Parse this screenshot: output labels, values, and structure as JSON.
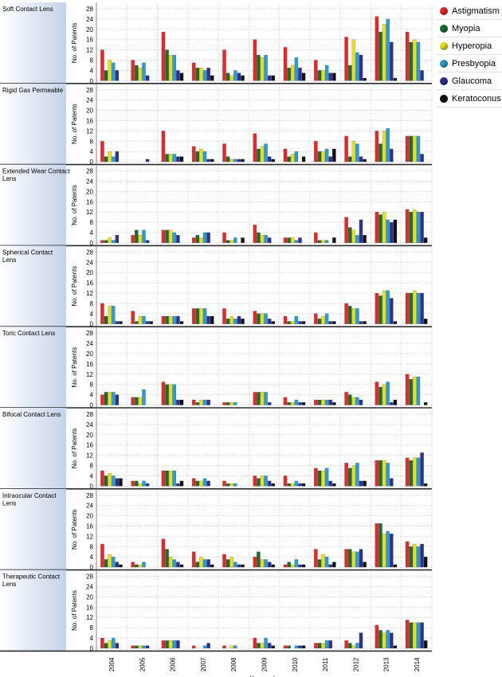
{
  "chart_data": {
    "type": "bar",
    "xlabel": "Year_pub",
    "ylabel": "No. of Patents",
    "ylim": [
      0,
      28
    ],
    "yticks": [
      0,
      4,
      8,
      12,
      16,
      20,
      24,
      28
    ],
    "grid": true,
    "legend_position": "top-right",
    "categories": [
      "2004",
      "2005",
      "2006",
      "2007",
      "2008",
      "2009",
      "2010",
      "2011",
      "2012",
      "2013",
      "2014"
    ],
    "series_info": [
      {
        "name": "Astigmatism",
        "color": "#e8262a"
      },
      {
        "name": "Myopia",
        "color": "#1e6b2e"
      },
      {
        "name": "Hyperopia",
        "color": "#e6e01f"
      },
      {
        "name": "Presbyopia",
        "color": "#2a9bd4"
      },
      {
        "name": "Glaucoma",
        "color": "#2e3192"
      },
      {
        "name": "Keratoconus",
        "color": "#111111"
      }
    ],
    "panels": [
      {
        "title": "Soft Contact Lens",
        "series": [
          {
            "name": "Astigmatism",
            "values": [
              12,
              8,
              19,
              7,
              12,
              16,
              13,
              8,
              17,
              25,
              19
            ]
          },
          {
            "name": "Myopia",
            "values": [
              4,
              6,
              12,
              5,
              3,
              10,
              5,
              4,
              6,
              19,
              15
            ]
          },
          {
            "name": "Hyperopia",
            "values": [
              8,
              5,
              10,
              5,
              2,
              9,
              6,
              4,
              16,
              22,
              16
            ]
          },
          {
            "name": "Presbyopia",
            "values": [
              7,
              7,
              10,
              4,
              4,
              10,
              9,
              6,
              11,
              24,
              15
            ]
          },
          {
            "name": "Glaucoma",
            "values": [
              4,
              2,
              4,
              5,
              3,
              2,
              5,
              3,
              10,
              15,
              4
            ]
          },
          {
            "name": "Keratoconus",
            "values": [
              0,
              0,
              3,
              2,
              2,
              2,
              3,
              3,
              1,
              1,
              0
            ]
          }
        ]
      },
      {
        "title": "Rigid Gas Permeable",
        "series": [
          {
            "name": "Astigmatism",
            "values": [
              8,
              0,
              12,
              6,
              7,
              11,
              5,
              8,
              10,
              12,
              10
            ]
          },
          {
            "name": "Myopia",
            "values": [
              2,
              0,
              3,
              4,
              2,
              5,
              2,
              4,
              2,
              7,
              10
            ]
          },
          {
            "name": "Hyperopia",
            "values": [
              4,
              0,
              3,
              5,
              1,
              6,
              3,
              4,
              8,
              12,
              10
            ]
          },
          {
            "name": "Presbyopia",
            "values": [
              2,
              0,
              3,
              4,
              1,
              7,
              4,
              5,
              7,
              13,
              10
            ]
          },
          {
            "name": "Glaucoma",
            "values": [
              4,
              1,
              2,
              1,
              1,
              2,
              0,
              2,
              2,
              5,
              3
            ]
          },
          {
            "name": "Keratoconus",
            "values": [
              0,
              0,
              2,
              1,
              1,
              1,
              2,
              5,
              1,
              0,
              0
            ]
          }
        ]
      },
      {
        "title": "Extended Wear Contact Lens",
        "series": [
          {
            "name": "Astigmatism",
            "values": [
              1,
              3,
              5,
              2,
              4,
              7,
              2,
              4,
              10,
              12,
              13
            ]
          },
          {
            "name": "Myopia",
            "values": [
              1,
              5,
              5,
              3,
              1,
              4,
              2,
              1,
              6,
              11,
              12
            ]
          },
          {
            "name": "Hyperopia",
            "values": [
              2,
              3,
              5,
              2,
              1,
              3,
              2,
              1,
              5,
              12,
              13
            ]
          },
          {
            "name": "Presbyopia",
            "values": [
              1,
              5,
              4,
              4,
              2,
              3,
              1,
              1,
              3,
              9,
              12
            ]
          },
          {
            "name": "Glaucoma",
            "values": [
              3,
              1,
              3,
              4,
              0,
              2,
              2,
              0,
              9,
              8,
              12
            ]
          },
          {
            "name": "Keratoconus",
            "values": [
              0,
              0,
              0,
              0,
              2,
              0,
              0,
              2,
              3,
              9,
              2
            ]
          }
        ]
      },
      {
        "title": "Spherical Contact Lens",
        "series": [
          {
            "name": "Astigmatism",
            "values": [
              8,
              5,
              3,
              6,
              6,
              5,
              3,
              4,
              8,
              12,
              12
            ]
          },
          {
            "name": "Myopia",
            "values": [
              3,
              1,
              3,
              6,
              2,
              4,
              1,
              2,
              7,
              11,
              12
            ]
          },
          {
            "name": "Hyperopia",
            "values": [
              7,
              3,
              3,
              6,
              3,
              4,
              1,
              3,
              6,
              13,
              13
            ]
          },
          {
            "name": "Presbyopia",
            "values": [
              7,
              3,
              3,
              6,
              2,
              4,
              3,
              4,
              6,
              13,
              12
            ]
          },
          {
            "name": "Glaucoma",
            "values": [
              1,
              1,
              3,
              3,
              3,
              2,
              1,
              1,
              1,
              10,
              12
            ]
          },
          {
            "name": "Keratoconus",
            "values": [
              1,
              1,
              1,
              3,
              2,
              1,
              1,
              1,
              1,
              1,
              2
            ]
          }
        ]
      },
      {
        "title": "Toric Contact Lens",
        "series": [
          {
            "name": "Astigmatism",
            "values": [
              4,
              3,
              9,
              2,
              1,
              5,
              3,
              2,
              5,
              9,
              12
            ]
          },
          {
            "name": "Myopia",
            "values": [
              5,
              3,
              8,
              1,
              1,
              5,
              1,
              2,
              4,
              7,
              10
            ]
          },
          {
            "name": "Hyperopia",
            "values": [
              5,
              3,
              8,
              2,
              1,
              5,
              1,
              2,
              3,
              8,
              11
            ]
          },
          {
            "name": "Presbyopia",
            "values": [
              5,
              6,
              8,
              2,
              1,
              5,
              2,
              2,
              3,
              9,
              11
            ]
          },
          {
            "name": "Glaucoma",
            "values": [
              4,
              0,
              2,
              2,
              0,
              1,
              1,
              2,
              2,
              1,
              0
            ]
          },
          {
            "name": "Keratoconus",
            "values": [
              0,
              0,
              2,
              0,
              0,
              0,
              1,
              1,
              0,
              2,
              1
            ]
          }
        ]
      },
      {
        "title": "Bifocal Contact Lens",
        "series": [
          {
            "name": "Astigmatism",
            "values": [
              6,
              2,
              6,
              3,
              2,
              4,
              4,
              7,
              9,
              10,
              11
            ]
          },
          {
            "name": "Myopia",
            "values": [
              4,
              2,
              6,
              2,
              1,
              3,
              1,
              6,
              7,
              10,
              10
            ]
          },
          {
            "name": "Hyperopia",
            "values": [
              5,
              1,
              6,
              2,
              1,
              4,
              1,
              6,
              8,
              10,
              11
            ]
          },
          {
            "name": "Presbyopia",
            "values": [
              4,
              2,
              6,
              3,
              1,
              4,
              2,
              7,
              9,
              9,
              11
            ]
          },
          {
            "name": "Glaucoma",
            "values": [
              3,
              1,
              1,
              2,
              0,
              2,
              1,
              2,
              2,
              3,
              13
            ]
          },
          {
            "name": "Keratoconus",
            "values": [
              3,
              0,
              2,
              0,
              0,
              1,
              1,
              1,
              2,
              0,
              1
            ]
          }
        ]
      },
      {
        "title": "Intraocular Contact Lens",
        "series": [
          {
            "name": "Astigmatism",
            "values": [
              9,
              2,
              11,
              6,
              5,
              4,
              1,
              7,
              7,
              17,
              10
            ]
          },
          {
            "name": "Myopia",
            "values": [
              3,
              1,
              7,
              2,
              3,
              6,
              2,
              3,
              7,
              17,
              8
            ]
          },
          {
            "name": "Hyperopia",
            "values": [
              5,
              1,
              4,
              4,
              4,
              3,
              1,
              5,
              6,
              13,
              9
            ]
          },
          {
            "name": "Presbyopia",
            "values": [
              4,
              2,
              3,
              3,
              2,
              3,
              3,
              4,
              6,
              14,
              8
            ]
          },
          {
            "name": "Glaucoma",
            "values": [
              2,
              0,
              2,
              3,
              1,
              2,
              1,
              1,
              7,
              13,
              9
            ]
          },
          {
            "name": "Keratoconus",
            "values": [
              1,
              0,
              1,
              1,
              1,
              1,
              1,
              2,
              2,
              1,
              4
            ]
          }
        ]
      },
      {
        "title": "Therapeutic Contact Lens",
        "series": [
          {
            "name": "Astigmatism",
            "values": [
              4,
              1,
              3,
              1,
              1,
              4,
              1,
              2,
              3,
              9,
              11
            ]
          },
          {
            "name": "Myopia",
            "values": [
              2,
              1,
              3,
              0,
              0,
              2,
              1,
              2,
              2,
              7,
              10
            ]
          },
          {
            "name": "Hyperopia",
            "values": [
              3,
              1,
              3,
              0,
              1,
              2,
              0,
              2,
              1,
              6,
              10
            ]
          },
          {
            "name": "Presbyopia",
            "values": [
              4,
              1,
              3,
              1,
              1,
              4,
              1,
              3,
              2,
              7,
              10
            ]
          },
          {
            "name": "Glaucoma",
            "values": [
              2,
              1,
              3,
              2,
              0,
              2,
              1,
              3,
              6,
              6,
              10
            ]
          },
          {
            "name": "Keratoconus",
            "values": [
              0,
              0,
              0,
              0,
              0,
              1,
              1,
              0,
              0,
              1,
              3
            ]
          }
        ]
      }
    ]
  }
}
